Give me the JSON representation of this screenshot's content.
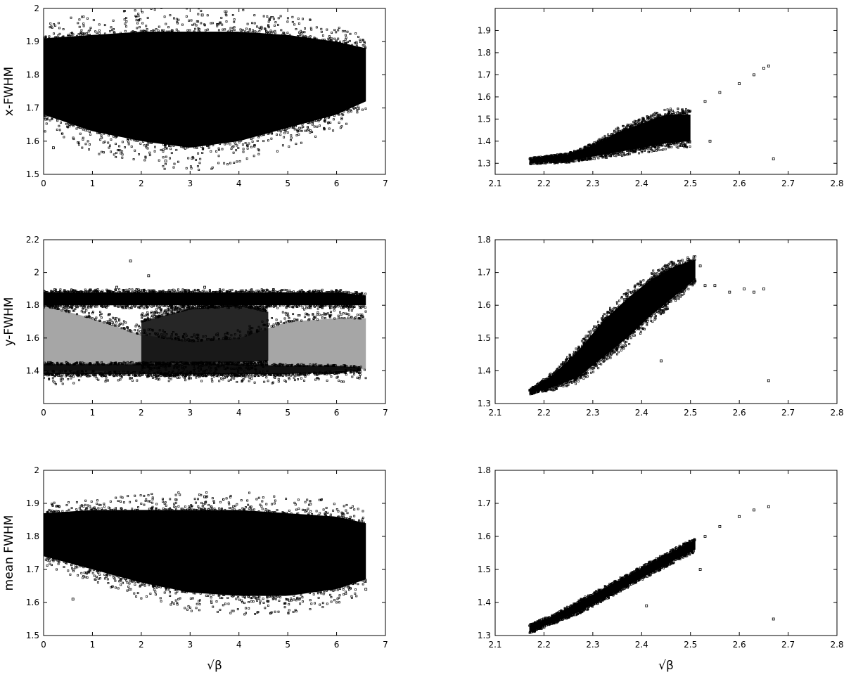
{
  "chart_data": [
    {
      "type": "scatter",
      "xlabel": "",
      "ylabel": "x-FWHM",
      "xlim": [
        0,
        7
      ],
      "ylim": [
        1.5,
        2
      ],
      "xticks": [
        "0",
        "1",
        "2",
        "3",
        "4",
        "5",
        "6",
        "7"
      ],
      "yticks": [
        "1.5",
        "1.6",
        "1.7",
        "1.8",
        "1.9",
        "2"
      ],
      "marker_color": "#000000",
      "bands": [
        {
          "x": [
            0,
            1,
            2,
            3,
            4,
            5,
            6,
            6.6
          ],
          "lo": [
            1.68,
            1.63,
            1.6,
            1.58,
            1.6,
            1.64,
            1.68,
            1.72
          ],
          "hi": [
            1.91,
            1.92,
            1.93,
            1.93,
            1.93,
            1.92,
            1.9,
            1.88
          ],
          "density": 1.0
        }
      ],
      "outliers": [
        [
          3.25,
          1.98
        ],
        [
          0.2,
          1.58
        ],
        [
          2.5,
          1.54
        ]
      ]
    },
    {
      "type": "scatter",
      "xlabel": "",
      "ylabel": "",
      "xlim": [
        2.1,
        2.8
      ],
      "ylim": [
        1.25,
        2.0
      ],
      "xticks": [
        "2.1",
        "2.2",
        "2.3",
        "2.4",
        "2.5",
        "2.6",
        "2.7",
        "2.8"
      ],
      "yticks": [
        "1.3",
        "1.4",
        "1.5",
        "1.6",
        "1.7",
        "1.8",
        "1.9"
      ],
      "marker_color": "#000000",
      "bands": [
        {
          "x": [
            2.17,
            2.25,
            2.3,
            2.35,
            2.4,
            2.45,
            2.5
          ],
          "lo": [
            1.3,
            1.31,
            1.33,
            1.35,
            1.37,
            1.39,
            1.4
          ],
          "hi": [
            1.32,
            1.34,
            1.38,
            1.44,
            1.48,
            1.52,
            1.52
          ],
          "density": 1.0
        }
      ],
      "outliers": [
        [
          2.53,
          1.58
        ],
        [
          2.56,
          1.62
        ],
        [
          2.6,
          1.66
        ],
        [
          2.63,
          1.7
        ],
        [
          2.65,
          1.73
        ],
        [
          2.66,
          1.74
        ],
        [
          2.67,
          1.32
        ],
        [
          2.54,
          1.4
        ]
      ]
    },
    {
      "type": "scatter",
      "xlabel": "",
      "ylabel": "y-FWHM",
      "xlim": [
        0,
        7
      ],
      "ylim": [
        1.2,
        2.2
      ],
      "xticks": [
        "0",
        "1",
        "2",
        "3",
        "4",
        "5",
        "6",
        "7"
      ],
      "yticks": [
        "1.4",
        "1.6",
        "1.8",
        "2",
        "2.2"
      ],
      "marker_color": "#000000",
      "bands": [
        {
          "x": [
            0,
            1,
            2,
            3,
            4,
            5,
            6,
            6.6
          ],
          "lo": [
            1.8,
            1.8,
            1.8,
            1.8,
            1.8,
            1.8,
            1.8,
            1.8
          ],
          "hi": [
            1.88,
            1.88,
            1.88,
            1.88,
            1.88,
            1.88,
            1.88,
            1.86
          ],
          "density": 1.0
        },
        {
          "x": [
            0,
            1,
            2,
            3,
            4,
            5,
            6,
            6.6
          ],
          "lo": [
            1.4,
            1.4,
            1.39,
            1.38,
            1.38,
            1.38,
            1.4,
            1.41
          ],
          "hi": [
            1.8,
            1.72,
            1.62,
            1.58,
            1.6,
            1.7,
            1.72,
            1.72
          ],
          "density": 0.35
        },
        {
          "x": [
            0,
            1,
            2,
            3,
            4,
            5,
            6,
            6.5
          ],
          "lo": [
            1.38,
            1.38,
            1.38,
            1.38,
            1.38,
            1.38,
            1.39,
            1.4
          ],
          "hi": [
            1.44,
            1.44,
            1.44,
            1.44,
            1.44,
            1.43,
            1.43,
            1.42
          ],
          "density": 0.9
        },
        {
          "x": [
            2.0,
            3.0,
            4.0,
            4.6
          ],
          "lo": [
            1.45,
            1.45,
            1.45,
            1.46
          ],
          "hi": [
            1.7,
            1.78,
            1.8,
            1.76
          ],
          "density": 0.85
        }
      ],
      "outliers": [
        [
          1.78,
          2.07
        ],
        [
          2.15,
          1.98
        ],
        [
          3.3,
          1.91
        ],
        [
          1.5,
          1.91
        ]
      ]
    },
    {
      "type": "scatter",
      "xlabel": "",
      "ylabel": "",
      "xlim": [
        2.1,
        2.8
      ],
      "ylim": [
        1.3,
        1.8
      ],
      "xticks": [
        "2.1",
        "2.2",
        "2.3",
        "2.4",
        "2.5",
        "2.6",
        "2.7",
        "2.8"
      ],
      "yticks": [
        "1.3",
        "1.4",
        "1.5",
        "1.6",
        "1.7",
        "1.8"
      ],
      "marker_color": "#000000",
      "bands": [
        {
          "x": [
            2.17,
            2.22,
            2.27,
            2.32,
            2.37,
            2.42,
            2.47,
            2.51
          ],
          "lo": [
            1.33,
            1.35,
            1.38,
            1.44,
            1.5,
            1.57,
            1.63,
            1.68
          ],
          "hi": [
            1.34,
            1.39,
            1.46,
            1.55,
            1.62,
            1.68,
            1.72,
            1.74
          ],
          "density": 1.0
        }
      ],
      "outliers": [
        [
          2.52,
          1.72
        ],
        [
          2.53,
          1.66
        ],
        [
          2.55,
          1.66
        ],
        [
          2.58,
          1.64
        ],
        [
          2.61,
          1.65
        ],
        [
          2.63,
          1.64
        ],
        [
          2.65,
          1.65
        ],
        [
          2.66,
          1.37
        ],
        [
          2.44,
          1.43
        ]
      ]
    },
    {
      "type": "scatter",
      "xlabel": "√β",
      "ylabel": "mean FWHM",
      "xlim": [
        0,
        7
      ],
      "ylim": [
        1.5,
        2
      ],
      "xticks": [
        "0",
        "1",
        "2",
        "3",
        "4",
        "5",
        "6",
        "7"
      ],
      "yticks": [
        "1.5",
        "1.6",
        "1.7",
        "1.8",
        "1.9",
        "2"
      ],
      "marker_color": "#000000",
      "bands": [
        {
          "x": [
            0,
            1,
            2,
            3,
            4,
            5,
            6,
            6.6
          ],
          "lo": [
            1.74,
            1.7,
            1.66,
            1.63,
            1.62,
            1.62,
            1.64,
            1.67
          ],
          "hi": [
            1.87,
            1.88,
            1.88,
            1.88,
            1.88,
            1.87,
            1.86,
            1.84
          ],
          "density": 1.0
        }
      ],
      "outliers": [
        [
          3.3,
          1.92
        ],
        [
          0.6,
          1.61
        ],
        [
          6.6,
          1.64
        ]
      ]
    },
    {
      "type": "scatter",
      "xlabel": "√β",
      "ylabel": "",
      "xlim": [
        2.1,
        2.8
      ],
      "ylim": [
        1.3,
        1.8
      ],
      "xticks": [
        "2.1",
        "2.2",
        "2.3",
        "2.4",
        "2.5",
        "2.6",
        "2.7",
        "2.8"
      ],
      "yticks": [
        "1.3",
        "1.4",
        "1.5",
        "1.6",
        "1.7",
        "1.8"
      ],
      "marker_color": "#000000",
      "bands": [
        {
          "x": [
            2.17,
            2.22,
            2.27,
            2.32,
            2.37,
            2.42,
            2.47,
            2.51
          ],
          "lo": [
            1.31,
            1.34,
            1.37,
            1.41,
            1.45,
            1.49,
            1.53,
            1.56
          ],
          "hi": [
            1.33,
            1.36,
            1.4,
            1.44,
            1.48,
            1.52,
            1.56,
            1.59
          ],
          "density": 1.0
        }
      ],
      "outliers": [
        [
          2.53,
          1.6
        ],
        [
          2.56,
          1.63
        ],
        [
          2.6,
          1.66
        ],
        [
          2.63,
          1.68
        ],
        [
          2.66,
          1.69
        ],
        [
          2.67,
          1.35
        ],
        [
          2.52,
          1.5
        ],
        [
          2.41,
          1.39
        ]
      ]
    }
  ]
}
